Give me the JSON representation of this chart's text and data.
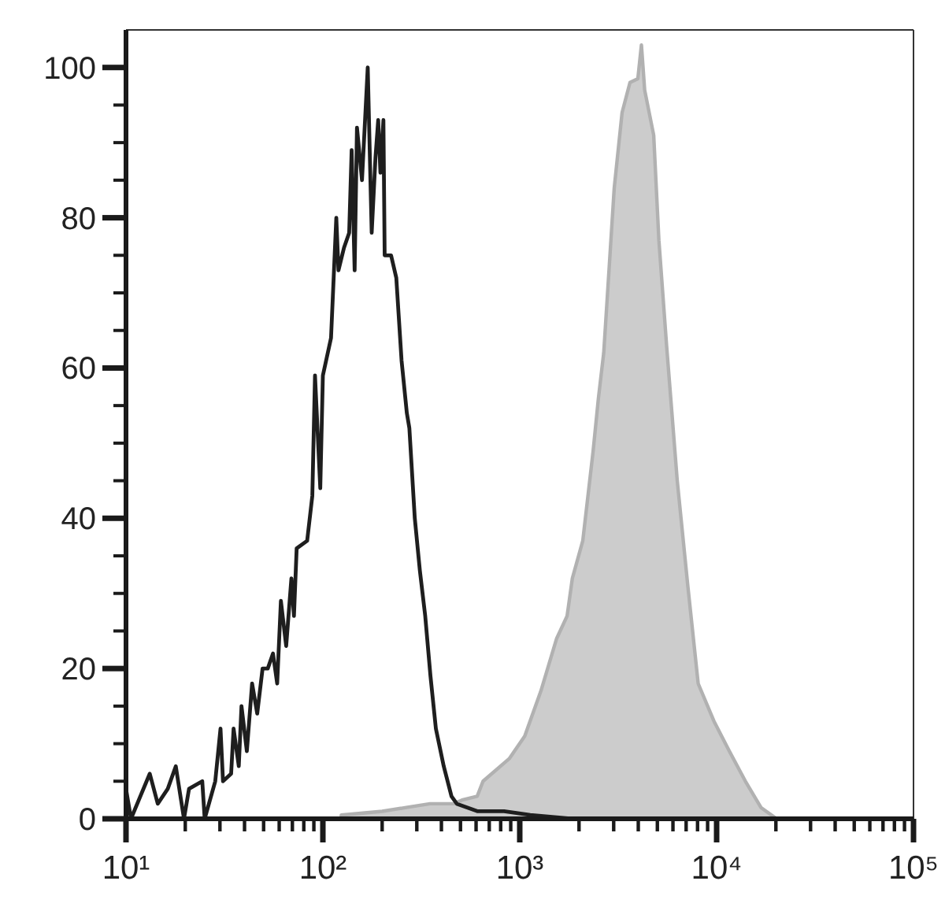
{
  "chart_data": {
    "type": "line",
    "log": "x",
    "xlim": [
      10,
      100000
    ],
    "xticks": [
      {
        "value": 10,
        "label": "10¹"
      },
      {
        "value": 20,
        "label": null
      },
      {
        "value": 30,
        "label": null
      },
      {
        "value": 40,
        "label": null
      },
      {
        "value": 50,
        "label": null
      },
      {
        "value": 60,
        "label": null
      },
      {
        "value": 70,
        "label": null
      },
      {
        "value": 80,
        "label": null
      },
      {
        "value": 90,
        "label": null
      },
      {
        "value": 100,
        "label": "10²"
      },
      {
        "value": 200,
        "label": null
      },
      {
        "value": 300,
        "label": null
      },
      {
        "value": 400,
        "label": null
      },
      {
        "value": 500,
        "label": null
      },
      {
        "value": 600,
        "label": null
      },
      {
        "value": 700,
        "label": null
      },
      {
        "value": 800,
        "label": null
      },
      {
        "value": 900,
        "label": null
      },
      {
        "value": 1000,
        "label": "10³"
      },
      {
        "value": 2000,
        "label": null
      },
      {
        "value": 3000,
        "label": null
      },
      {
        "value": 4000,
        "label": null
      },
      {
        "value": 5000,
        "label": null
      },
      {
        "value": 6000,
        "label": null
      },
      {
        "value": 7000,
        "label": null
      },
      {
        "value": 8000,
        "label": null
      },
      {
        "value": 9000,
        "label": null
      },
      {
        "value": 10000,
        "label": "10⁴"
      },
      {
        "value": 20000,
        "label": null
      },
      {
        "value": 30000,
        "label": null
      },
      {
        "value": 40000,
        "label": null
      },
      {
        "value": 50000,
        "label": null
      },
      {
        "value": 60000,
        "label": null
      },
      {
        "value": 70000,
        "label": null
      },
      {
        "value": 80000,
        "label": null
      },
      {
        "value": 90000,
        "label": null
      },
      {
        "value": 100000,
        "label": "10⁵"
      }
    ],
    "ylim": [
      0,
      105
    ],
    "yticks": [
      0,
      {
        "value": 5,
        "label": null
      },
      {
        "value": 10,
        "label": null
      },
      {
        "value": 15,
        "label": null
      },
      20,
      {
        "value": 25,
        "label": null
      },
      {
        "value": 30,
        "label": null
      },
      {
        "value": 35,
        "label": null
      },
      40,
      {
        "value": 45,
        "label": null
      },
      {
        "value": 50,
        "label": null
      },
      {
        "value": 55,
        "label": null
      },
      60,
      {
        "value": 65,
        "label": null
      },
      {
        "value": 70,
        "label": null
      },
      {
        "value": 75,
        "label": null
      },
      80,
      {
        "value": 85,
        "label": null
      },
      {
        "value": 90,
        "label": null
      },
      {
        "value": 95,
        "label": null
      },
      100
    ],
    "series": [
      {
        "type": "area",
        "color": "#cccccc",
        "x": [
          124,
          200,
          265,
          350,
          461,
          509,
          608,
          651,
          884,
          1060,
          1280,
          1540,
          1740,
          1850,
          2090,
          2360,
          2510,
          2670,
          2840,
          3020,
          3310,
          3630,
          3980,
          4150,
          4310,
          4790,
          5090,
          5570,
          6310,
          7140,
          8060,
          9690,
          11600,
          14000,
          16800,
          20200
        ],
        "values": [
          0.5,
          1,
          1.5,
          2,
          2,
          2.5,
          3,
          5,
          8,
          11,
          17,
          24,
          27,
          32,
          37,
          49,
          56,
          62,
          73,
          84,
          94,
          98,
          98.5,
          103,
          97,
          91,
          77,
          63,
          45,
          31,
          18,
          13,
          9,
          5,
          1.5,
          0
        ]
      },
      {
        "color": "#1e1e1e",
        "x": [
          10,
          10.6,
          13.2,
          14.5,
          16.3,
          17.9,
          19.7,
          20.9,
          24.4,
          25.1,
          28.4,
          30.2,
          31.1,
          34.2,
          35.2,
          37.4,
          38.6,
          41.1,
          43.7,
          46.4,
          49.4,
          52.5,
          55.8,
          58.6,
          61.2,
          65.1,
          69.2,
          71.3,
          73.6,
          83.2,
          88.4,
          91.2,
          97,
          100,
          110,
          117,
          120,
          128,
          136,
          140,
          145,
          149,
          158,
          169,
          177,
          185,
          191,
          196,
          203,
          206,
          222,
          236,
          251,
          267,
          275,
          293,
          311,
          331,
          352,
          375,
          411,
          450,
          479,
          612,
          832,
          1130,
          1850
        ],
        "values": [
          4,
          0,
          6,
          2,
          4,
          7,
          0,
          4,
          5,
          0,
          5,
          12,
          5,
          6,
          12,
          7,
          15,
          9,
          18,
          14,
          20,
          20,
          22,
          18,
          29,
          23,
          32,
          27,
          36,
          37,
          43,
          59,
          44,
          59,
          64,
          80,
          73,
          76,
          78,
          89,
          73,
          92,
          85,
          100,
          78,
          88,
          93,
          86,
          93,
          75,
          75,
          72,
          61,
          54,
          52,
          40,
          33,
          27,
          19,
          12,
          7,
          3,
          2,
          1,
          1,
          0.5,
          0
        ]
      }
    ]
  }
}
